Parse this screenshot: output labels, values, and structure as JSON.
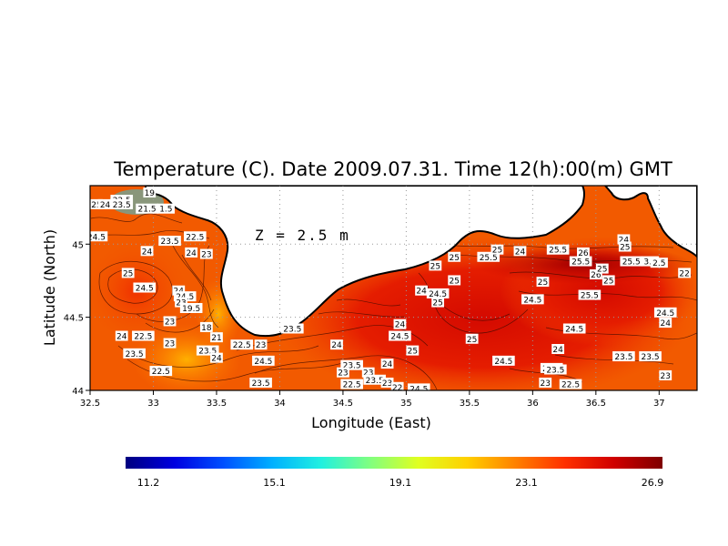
{
  "chart_data": {
    "type": "heatmap",
    "title": "Temperature (C). Date 2009.07.31. Time 12(h):00(m) GMT",
    "xlabel": "Longitude (East)",
    "ylabel": "Latitude (North)",
    "annotation": "Z = 2.5 m",
    "xlim": [
      32.5,
      37.3
    ],
    "ylim": [
      44.0,
      45.4
    ],
    "x_ticks": [
      "32.5",
      "33",
      "33.5",
      "34",
      "34.5",
      "35",
      "35.5",
      "36",
      "36.5",
      "37"
    ],
    "x_tick_values": [
      32.5,
      33,
      33.5,
      34,
      34.5,
      35,
      35.5,
      36,
      36.5,
      37
    ],
    "y_ticks": [
      "44",
      "44.5",
      "45"
    ],
    "y_tick_values": [
      44,
      44.5,
      45
    ],
    "grid": "dotted",
    "colorbar": {
      "min": 11.2,
      "max": 26.9,
      "tick_labels": [
        "11.2",
        "15.1",
        "19.1",
        "23.1",
        "26.9"
      ],
      "colors": [
        "#00007f",
        "#0000e0",
        "#0050ff",
        "#00b0ff",
        "#20f0e0",
        "#80ff80",
        "#e0ff20",
        "#ffd000",
        "#ff8000",
        "#ff3000",
        "#d00000",
        "#7f0000"
      ]
    },
    "contour_labels": [
      {
        "lon": 32.55,
        "lat": 45.27,
        "text": "25"
      },
      {
        "lon": 32.65,
        "lat": 45.27,
        "text": "24.5"
      },
      {
        "lon": 32.75,
        "lat": 45.3,
        "text": "22.5"
      },
      {
        "lon": 32.75,
        "lat": 45.27,
        "text": "23.5"
      },
      {
        "lon": 32.97,
        "lat": 45.35,
        "text": "19"
      },
      {
        "lon": 32.95,
        "lat": 45.24,
        "text": "21.5"
      },
      {
        "lon": 33.1,
        "lat": 45.24,
        "text": "1.5"
      },
      {
        "lon": 32.55,
        "lat": 45.05,
        "text": "24.5"
      },
      {
        "lon": 33.13,
        "lat": 45.02,
        "text": "23.5"
      },
      {
        "lon": 33.33,
        "lat": 45.05,
        "text": "22.5"
      },
      {
        "lon": 32.95,
        "lat": 44.95,
        "text": "24"
      },
      {
        "lon": 33.3,
        "lat": 44.94,
        "text": "24"
      },
      {
        "lon": 33.42,
        "lat": 44.93,
        "text": "23"
      },
      {
        "lon": 32.8,
        "lat": 44.8,
        "text": "25"
      },
      {
        "lon": 32.93,
        "lat": 44.7,
        "text": "24.5"
      },
      {
        "lon": 33.2,
        "lat": 44.68,
        "text": "24"
      },
      {
        "lon": 33.25,
        "lat": 44.64,
        "text": "24.5"
      },
      {
        "lon": 33.22,
        "lat": 44.6,
        "text": "23"
      },
      {
        "lon": 33.3,
        "lat": 44.56,
        "text": "19.5"
      },
      {
        "lon": 33.13,
        "lat": 44.47,
        "text": "23"
      },
      {
        "lon": 33.42,
        "lat": 44.43,
        "text": "18"
      },
      {
        "lon": 32.75,
        "lat": 44.37,
        "text": "24"
      },
      {
        "lon": 32.92,
        "lat": 44.37,
        "text": "22.5"
      },
      {
        "lon": 32.85,
        "lat": 44.25,
        "text": "23.5"
      },
      {
        "lon": 33.13,
        "lat": 44.32,
        "text": "23"
      },
      {
        "lon": 33.5,
        "lat": 44.36,
        "text": "21"
      },
      {
        "lon": 33.43,
        "lat": 44.27,
        "text": "23.5"
      },
      {
        "lon": 33.5,
        "lat": 44.22,
        "text": "24"
      },
      {
        "lon": 33.7,
        "lat": 44.31,
        "text": "22.5"
      },
      {
        "lon": 33.85,
        "lat": 44.31,
        "text": "23"
      },
      {
        "lon": 33.87,
        "lat": 44.2,
        "text": "24.5"
      },
      {
        "lon": 33.06,
        "lat": 44.13,
        "text": "22.5"
      },
      {
        "lon": 33.85,
        "lat": 44.05,
        "text": "23.5"
      },
      {
        "lon": 34.1,
        "lat": 44.42,
        "text": "23.5"
      },
      {
        "lon": 34.45,
        "lat": 44.31,
        "text": "24"
      },
      {
        "lon": 34.57,
        "lat": 44.17,
        "text": "23.5"
      },
      {
        "lon": 34.5,
        "lat": 44.12,
        "text": "23"
      },
      {
        "lon": 34.7,
        "lat": 44.12,
        "text": "23"
      },
      {
        "lon": 34.57,
        "lat": 44.04,
        "text": "22.5"
      },
      {
        "lon": 34.85,
        "lat": 44.18,
        "text": "24"
      },
      {
        "lon": 34.75,
        "lat": 44.07,
        "text": "23.5"
      },
      {
        "lon": 34.85,
        "lat": 44.05,
        "text": "23"
      },
      {
        "lon": 34.93,
        "lat": 44.02,
        "text": "22"
      },
      {
        "lon": 35.1,
        "lat": 44.01,
        "text": "24.5"
      },
      {
        "lon": 34.95,
        "lat": 44.45,
        "text": "24"
      },
      {
        "lon": 34.95,
        "lat": 44.37,
        "text": "24.5"
      },
      {
        "lon": 35.05,
        "lat": 44.27,
        "text": "25"
      },
      {
        "lon": 35.12,
        "lat": 44.68,
        "text": "24"
      },
      {
        "lon": 35.25,
        "lat": 44.66,
        "text": "24.5"
      },
      {
        "lon": 35.25,
        "lat": 44.6,
        "text": "25"
      },
      {
        "lon": 35.23,
        "lat": 44.85,
        "text": "25"
      },
      {
        "lon": 35.38,
        "lat": 44.75,
        "text": "25"
      },
      {
        "lon": 35.38,
        "lat": 44.91,
        "text": "25"
      },
      {
        "lon": 35.65,
        "lat": 44.91,
        "text": "25.5"
      },
      {
        "lon": 35.72,
        "lat": 44.96,
        "text": "25"
      },
      {
        "lon": 35.9,
        "lat": 44.95,
        "text": "24"
      },
      {
        "lon": 35.52,
        "lat": 44.35,
        "text": "25"
      },
      {
        "lon": 35.77,
        "lat": 44.2,
        "text": "24.5"
      },
      {
        "lon": 36.08,
        "lat": 44.74,
        "text": "25"
      },
      {
        "lon": 36.0,
        "lat": 44.62,
        "text": "24.5"
      },
      {
        "lon": 36.2,
        "lat": 44.28,
        "text": "24"
      },
      {
        "lon": 36.15,
        "lat": 44.15,
        "text": "23.5"
      },
      {
        "lon": 36.18,
        "lat": 44.14,
        "text": "23.5"
      },
      {
        "lon": 36.1,
        "lat": 44.05,
        "text": "23"
      },
      {
        "lon": 36.3,
        "lat": 44.04,
        "text": "22.5"
      },
      {
        "lon": 36.33,
        "lat": 44.42,
        "text": "24.5"
      },
      {
        "lon": 36.2,
        "lat": 44.96,
        "text": "25.5"
      },
      {
        "lon": 36.4,
        "lat": 44.94,
        "text": "26"
      },
      {
        "lon": 36.38,
        "lat": 44.88,
        "text": "25.5"
      },
      {
        "lon": 36.5,
        "lat": 44.79,
        "text": "26"
      },
      {
        "lon": 36.6,
        "lat": 44.75,
        "text": "25"
      },
      {
        "lon": 36.45,
        "lat": 44.65,
        "text": "25.5"
      },
      {
        "lon": 36.72,
        "lat": 45.03,
        "text": "24"
      },
      {
        "lon": 36.73,
        "lat": 44.98,
        "text": "25"
      },
      {
        "lon": 36.78,
        "lat": 44.88,
        "text": "25.5"
      },
      {
        "lon": 36.93,
        "lat": 44.88,
        "text": "3.5"
      },
      {
        "lon": 37.0,
        "lat": 44.87,
        "text": "2.5"
      },
      {
        "lon": 37.2,
        "lat": 44.8,
        "text": "22"
      },
      {
        "lon": 36.72,
        "lat": 44.23,
        "text": "23.5"
      },
      {
        "lon": 36.93,
        "lat": 44.23,
        "text": "23.5"
      },
      {
        "lon": 37.05,
        "lat": 44.1,
        "text": "23"
      },
      {
        "lon": 37.05,
        "lat": 44.53,
        "text": "24.5"
      },
      {
        "lon": 37.05,
        "lat": 44.46,
        "text": "24"
      },
      {
        "lon": 36.55,
        "lat": 44.83,
        "text": "25"
      }
    ]
  }
}
